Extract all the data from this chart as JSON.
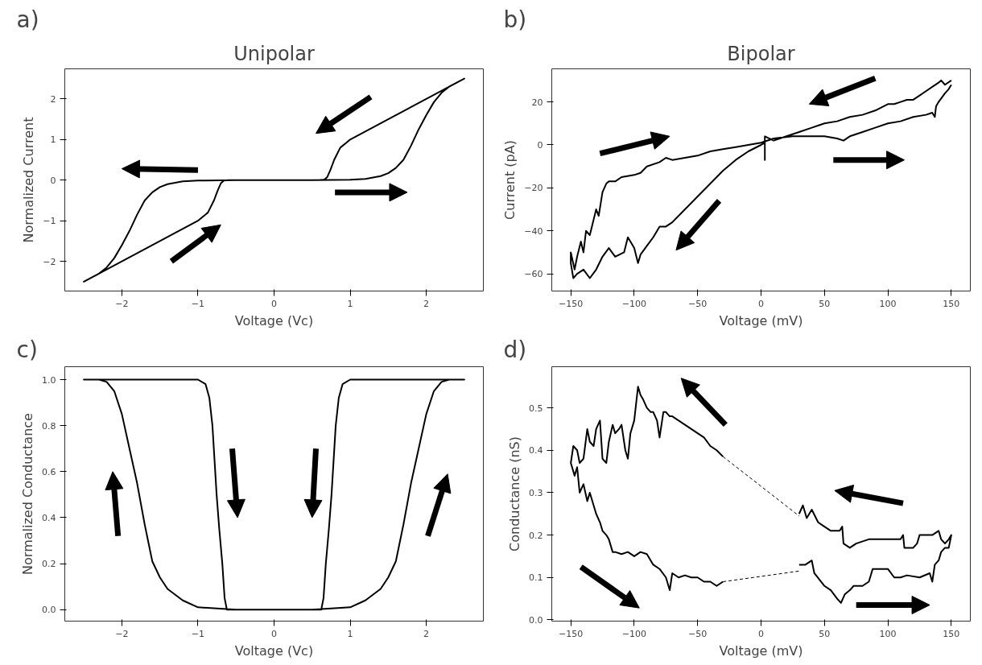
{
  "chart_data": [
    {
      "type": "line",
      "title": "Unipolar",
      "annotations": [
        "a)"
      ],
      "xlabel": "Voltage (Vc)",
      "ylabel": "Normalized Current",
      "xlim": [
        -2.75,
        2.75
      ],
      "ylim": [
        -2.73,
        2.74
      ],
      "xticks": [
        {
          "value": -2,
          "label": "−2"
        },
        {
          "value": -1,
          "label": "−1"
        },
        0,
        1,
        2
      ],
      "yticks": [
        {
          "value": -2,
          "label": "−2"
        },
        {
          "value": -1,
          "label": "−1"
        },
        0,
        1,
        2
      ],
      "grid": false,
      "line_style": "solid",
      "marker": "none",
      "series": [
        {
          "color": "#000000",
          "x": [
            0,
            0.5,
            1.0,
            1.2,
            1.4,
            1.5,
            1.6,
            1.7,
            1.8,
            1.9,
            2.0,
            2.1,
            2.2,
            2.3,
            2.5,
            2.0,
            1.5,
            1.0,
            0.95,
            0.87,
            0.79,
            0.74,
            0.7,
            0.66,
            0.6,
            0,
            -0.6,
            -0.66,
            -0.7,
            -0.74,
            -0.79,
            -0.87,
            -0.95,
            -1.0,
            -1.5,
            -2.0,
            -2.5,
            -2.3,
            -2.2,
            -2.1,
            -2.0,
            -1.9,
            -1.8,
            -1.7,
            -1.6,
            -1.5,
            -1.4,
            -1.2,
            -1.0,
            -0.5
          ],
          "values": [
            0,
            0,
            0.01,
            0.03,
            0.1,
            0.17,
            0.3,
            0.5,
            0.85,
            1.25,
            1.6,
            1.92,
            2.15,
            2.3,
            2.5,
            2.0,
            1.5,
            1.0,
            0.92,
            0.8,
            0.5,
            0.25,
            0.08,
            0.01,
            0,
            0,
            0,
            -0.01,
            -0.08,
            -0.25,
            -0.5,
            -0.8,
            -0.92,
            -1.0,
            -1.5,
            -2.0,
            -2.5,
            -2.3,
            -2.15,
            -1.92,
            -1.6,
            -1.25,
            -0.85,
            -0.5,
            -0.3,
            -0.17,
            -0.1,
            -0.03,
            -0.01,
            0
          ]
        }
      ]
    },
    {
      "type": "line",
      "title": "Bipolar",
      "annotations": [
        "b)"
      ],
      "xlabel": "Voltage (mV)",
      "ylabel": "Current (pA)",
      "xlim": [
        -165,
        165
      ],
      "ylim": [
        -68,
        35.4
      ],
      "xticks": [
        {
          "value": -150,
          "label": "−150"
        },
        {
          "value": -100,
          "label": "−100"
        },
        {
          "value": -50,
          "label": "−50"
        },
        0,
        50,
        100,
        150
      ],
      "yticks": [
        {
          "value": -60,
          "label": "−60"
        },
        {
          "value": -40,
          "label": "−40"
        },
        {
          "value": -20,
          "label": "−20"
        },
        0,
        20
      ],
      "grid": false,
      "line_style": "solid",
      "marker": "none",
      "series": [
        {
          "color": "#000000",
          "x": [
            150,
            145,
            142,
            140,
            135,
            130,
            125,
            120,
            115,
            110,
            105,
            100,
            90,
            80,
            70,
            60,
            50,
            40,
            30,
            20,
            10,
            3,
            3,
            3,
            0,
            -10,
            -20,
            -30,
            -40,
            -50,
            -60,
            -70,
            -75,
            -80,
            -85,
            -90,
            -95,
            -97,
            -100,
            -103,
            -105,
            -108,
            -115,
            -120,
            -125,
            -130,
            -135,
            -140,
            -145,
            -148,
            -150,
            -150,
            -147,
            -145,
            -142,
            -140,
            -138,
            -135,
            -130,
            -128,
            -125,
            -122,
            -120,
            -115,
            -110,
            -100,
            -95,
            -90,
            -80,
            -75,
            -70,
            -60,
            -50,
            -40,
            -30,
            -20,
            -10,
            0,
            10,
            25,
            40,
            50,
            60,
            65,
            70,
            80,
            90,
            100,
            110,
            120,
            130,
            135,
            137,
            138,
            140,
            145,
            148,
            150
          ],
          "values": [
            30,
            28,
            30,
            29,
            27,
            25,
            23,
            21,
            21,
            20,
            19,
            19,
            16,
            14,
            13,
            11,
            10,
            8,
            6,
            4,
            2,
            4,
            -7,
            1,
            0,
            -3,
            -7,
            -12,
            -18,
            -24,
            -30,
            -36,
            -38,
            -38,
            -43,
            -47,
            -51,
            -55,
            -48,
            -45,
            -43,
            -50,
            -52,
            -48,
            -52,
            -58,
            -62,
            -58,
            -60,
            -62,
            -55,
            -50,
            -58,
            -52,
            -45,
            -50,
            -40,
            -42,
            -30,
            -33,
            -22,
            -18,
            -17,
            -17,
            -15,
            -14,
            -13,
            -10,
            -8,
            -6,
            -7,
            -6,
            -5,
            -3,
            -2,
            -1,
            0,
            1,
            3,
            4,
            4,
            4,
            3,
            2,
            4,
            6,
            8,
            10,
            11,
            13,
            14,
            15,
            13,
            18,
            20,
            24,
            26,
            28
          ]
        }
      ]
    },
    {
      "type": "line",
      "annotations": [
        "c)"
      ],
      "xlabel": "Voltage (Vc)",
      "ylabel": "Normalized Conductance",
      "xlim": [
        -2.75,
        2.75
      ],
      "ylim": [
        -0.05,
        1.056
      ],
      "xticks": [
        {
          "value": -2,
          "label": "−2"
        },
        {
          "value": -1,
          "label": "−1"
        },
        0,
        1,
        2
      ],
      "yticks": [
        {
          "value": 0,
          "label": "0.0"
        },
        0.2,
        0.4,
        0.6,
        0.8,
        {
          "value": 1,
          "label": "1.0"
        }
      ],
      "grid": false,
      "line_style": "solid",
      "marker": "none",
      "series": [
        {
          "color": "#000000",
          "x": [
            0,
            0.5,
            1.0,
            1.2,
            1.4,
            1.5,
            1.6,
            1.7,
            1.8,
            1.9,
            2.0,
            2.1,
            2.2,
            2.3,
            2.5,
            1.0,
            0.9,
            0.85,
            0.81,
            0.755,
            0.72,
            0.68,
            0.65,
            0.62,
            0,
            -0.62,
            -0.65,
            -0.68,
            -0.72,
            -0.755,
            -0.81,
            -0.85,
            -0.9,
            -1.0,
            -2.5,
            -2.3,
            -2.2,
            -2.1,
            -2.0,
            -1.9,
            -1.8,
            -1.7,
            -1.6,
            -1.5,
            -1.4,
            -1.2,
            -1.0,
            -0.5
          ],
          "values": [
            0,
            0,
            0.01,
            0.04,
            0.09,
            0.14,
            0.21,
            0.37,
            0.55,
            0.7,
            0.85,
            0.95,
            0.99,
            1.0,
            1.0,
            1.0,
            0.98,
            0.92,
            0.8,
            0.5,
            0.35,
            0.2,
            0.05,
            0,
            0,
            0,
            0.05,
            0.2,
            0.35,
            0.5,
            0.8,
            0.92,
            0.98,
            1.0,
            1.0,
            1.0,
            0.99,
            0.95,
            0.85,
            0.7,
            0.55,
            0.37,
            0.21,
            0.14,
            0.09,
            0.04,
            0.01,
            0
          ]
        }
      ]
    },
    {
      "type": "line",
      "annotations": [
        "d)"
      ],
      "xlabel": "Voltage (mV)",
      "ylabel": "Conductance (nS)",
      "xlim": [
        -165,
        165
      ],
      "ylim": [
        -0.003,
        0.597
      ],
      "xticks": [
        {
          "value": -150,
          "label": "−150"
        },
        {
          "value": -100,
          "label": "−100"
        },
        {
          "value": -50,
          "label": "−50"
        },
        0,
        50,
        100,
        150
      ],
      "yticks": [
        {
          "value": 0,
          "label": "0.0"
        },
        0.1,
        0.2,
        0.3,
        0.4,
        0.5
      ],
      "grid": false,
      "marker": "none",
      "series": [
        {
          "color": "#000000",
          "line_style": "solid",
          "x": [
            -30,
            -35,
            -40,
            -45,
            -50,
            -55,
            -60,
            -65,
            -70,
            -72,
            -75,
            -80,
            -85,
            -87,
            -90,
            -95,
            -100,
            -105,
            -110,
            -115,
            -117,
            -120,
            -122,
            -125,
            -127,
            -130,
            -132,
            -135,
            -137,
            -140,
            -143,
            -145,
            -147,
            -150,
            -148,
            -145,
            -143,
            -140,
            -137,
            -135,
            -132,
            -130,
            -127,
            -125,
            -122,
            -120,
            -117,
            -115,
            -112,
            -110,
            -107,
            -105,
            -103,
            -100,
            -97,
            -95,
            -93,
            -90,
            -87,
            -85,
            -82,
            -80,
            -77,
            -75,
            -72,
            -70,
            -65,
            -60,
            -55,
            -50,
            -45,
            -40,
            -35,
            -30
          ],
          "values": [
            0.09,
            0.08,
            0.09,
            0.09,
            0.1,
            0.1,
            0.105,
            0.1,
            0.11,
            0.07,
            0.1,
            0.12,
            0.13,
            0.14,
            0.155,
            0.16,
            0.15,
            0.16,
            0.155,
            0.16,
            0.16,
            0.19,
            0.2,
            0.21,
            0.23,
            0.25,
            0.27,
            0.3,
            0.28,
            0.32,
            0.3,
            0.36,
            0.34,
            0.37,
            0.41,
            0.4,
            0.37,
            0.38,
            0.45,
            0.42,
            0.41,
            0.45,
            0.47,
            0.38,
            0.37,
            0.42,
            0.46,
            0.44,
            0.45,
            0.46,
            0.4,
            0.38,
            0.44,
            0.47,
            0.55,
            0.53,
            0.52,
            0.5,
            0.49,
            0.49,
            0.47,
            0.43,
            0.49,
            0.49,
            0.48,
            0.48,
            0.47,
            0.46,
            0.45,
            0.44,
            0.43,
            0.41,
            0.4,
            0.385
          ]
        },
        {
          "color": "#000000",
          "line_style": "dashed",
          "x": [
            -30,
            30
          ],
          "values": [
            0.385,
            0.245
          ]
        },
        {
          "color": "#000000",
          "line_style": "dashed",
          "x": [
            -30,
            30
          ],
          "values": [
            0.09,
            0.115
          ]
        },
        {
          "color": "#000000",
          "line_style": "solid",
          "x": [
            30,
            33,
            36,
            40,
            45,
            50,
            55,
            62,
            64,
            65,
            70,
            75,
            85,
            100,
            110,
            112,
            113,
            120,
            123,
            125,
            135,
            140,
            142,
            145,
            148,
            150,
            150,
            148,
            145,
            142,
            140,
            137,
            135,
            133,
            125,
            115,
            110,
            105,
            100,
            95,
            88,
            85,
            80,
            73,
            70,
            66,
            63,
            60,
            55,
            50,
            42,
            40,
            35,
            30
          ],
          "values": [
            0.25,
            0.27,
            0.24,
            0.26,
            0.23,
            0.22,
            0.21,
            0.21,
            0.22,
            0.18,
            0.17,
            0.18,
            0.19,
            0.19,
            0.19,
            0.2,
            0.17,
            0.17,
            0.18,
            0.2,
            0.2,
            0.21,
            0.19,
            0.18,
            0.19,
            0.2,
            0.2,
            0.17,
            0.17,
            0.16,
            0.14,
            0.13,
            0.09,
            0.11,
            0.1,
            0.105,
            0.1,
            0.1,
            0.12,
            0.12,
            0.12,
            0.09,
            0.08,
            0.08,
            0.07,
            0.06,
            0.04,
            0.05,
            0.07,
            0.08,
            0.11,
            0.14,
            0.13,
            0.13
          ]
        }
      ]
    }
  ]
}
